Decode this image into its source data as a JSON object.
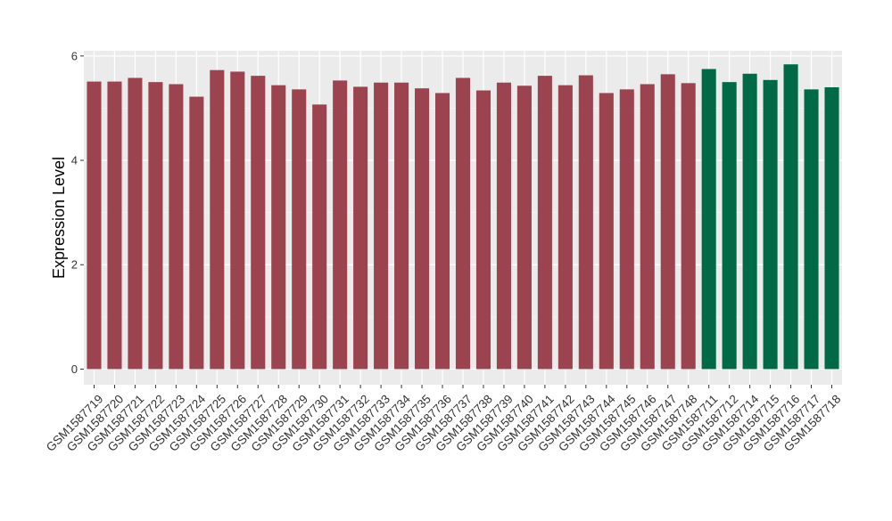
{
  "chart_data": {
    "type": "bar",
    "title": "",
    "xlabel": "",
    "ylabel": "Expression Level",
    "ylim": [
      -0.3,
      6.1
    ],
    "yticks": [
      0,
      2,
      4,
      6
    ],
    "grid": true,
    "legend": "none",
    "categories": [
      "GSM1587719",
      "GSM1587720",
      "GSM1587721",
      "GSM1587722",
      "GSM1587723",
      "GSM1587724",
      "GSM1587725",
      "GSM1587726",
      "GSM1587727",
      "GSM1587728",
      "GSM1587729",
      "GSM1587730",
      "GSM1587731",
      "GSM1587732",
      "GSM1587733",
      "GSM1587734",
      "GSM1587735",
      "GSM1587736",
      "GSM1587737",
      "GSM1587738",
      "GSM1587739",
      "GSM1587740",
      "GSM1587741",
      "GSM1587742",
      "GSM1587743",
      "GSM1587744",
      "GSM1587745",
      "GSM1587746",
      "GSM1587747",
      "GSM1587748",
      "GSM1587711",
      "GSM1587712",
      "GSM1587714",
      "GSM1587715",
      "GSM1587716",
      "GSM1587717",
      "GSM1587718"
    ],
    "values": [
      5.51,
      5.51,
      5.58,
      5.5,
      5.46,
      5.22,
      5.73,
      5.7,
      5.62,
      5.44,
      5.36,
      5.07,
      5.53,
      5.41,
      5.49,
      5.49,
      5.38,
      5.29,
      5.58,
      5.34,
      5.49,
      5.43,
      5.62,
      5.44,
      5.63,
      5.29,
      5.36,
      5.46,
      5.65,
      5.48,
      5.75,
      5.5,
      5.66,
      5.54,
      5.84,
      5.36,
      5.4
    ],
    "groups": [
      "a",
      "a",
      "a",
      "a",
      "a",
      "a",
      "a",
      "a",
      "a",
      "a",
      "a",
      "a",
      "a",
      "a",
      "a",
      "a",
      "a",
      "a",
      "a",
      "a",
      "a",
      "a",
      "a",
      "a",
      "a",
      "a",
      "a",
      "a",
      "a",
      "a",
      "b",
      "b",
      "b",
      "b",
      "b",
      "b",
      "b"
    ],
    "colors": {
      "a": "#9b4450",
      "b": "#006a47",
      "panel": "#ebebeb",
      "grid_major": "#ffffff",
      "grid_minor": "#f5f5f5",
      "tick": "#333333",
      "text": "#000000"
    }
  }
}
